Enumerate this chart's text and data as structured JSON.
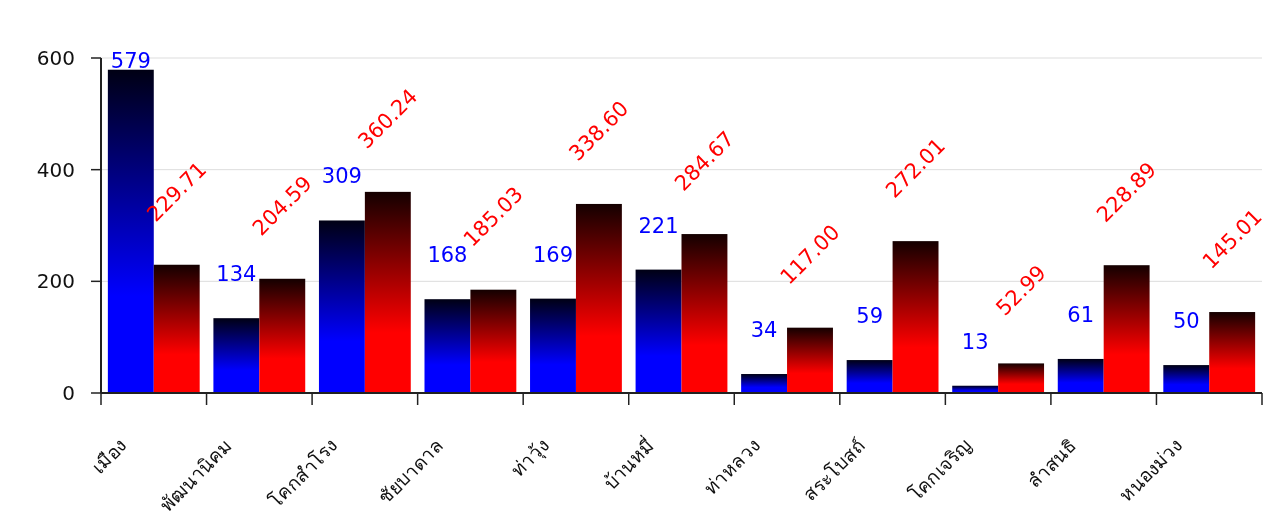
{
  "chart_data": {
    "type": "bar",
    "categories": [
      "เมือง",
      "พัฒนานิคม",
      "โคกสำโรง",
      "ชัยบาดาล",
      "ท่าวุ้ง",
      "บ้านหมี่",
      "ท่าหลวง",
      "สระโบสถ์",
      "โคกเจริญ",
      "ลำสนธิ",
      "หนองม่วง"
    ],
    "series": [
      {
        "color": "#0000ff",
        "values": [
          579,
          134,
          309,
          168,
          169,
          221,
          34,
          59,
          13,
          61,
          50
        ],
        "value_labels": [
          "579",
          "134",
          "309",
          "168",
          "169",
          "221",
          "34",
          "59",
          "13",
          "61",
          "50"
        ]
      },
      {
        "color": "#ff0000",
        "values": [
          229.71,
          204.59,
          360.24,
          185.03,
          338.6,
          284.67,
          117.0,
          272.01,
          52.99,
          228.89,
          145.01
        ],
        "value_labels": [
          "229.71",
          "204.59",
          "360.24",
          "185.03",
          "338.60",
          "284.67",
          "117.00",
          "272.01",
          "52.99",
          "228.89",
          "145.01"
        ]
      }
    ],
    "ylim": [
      0,
      600
    ],
    "yticks": [
      0,
      200,
      400,
      600
    ],
    "grid": "y"
  }
}
